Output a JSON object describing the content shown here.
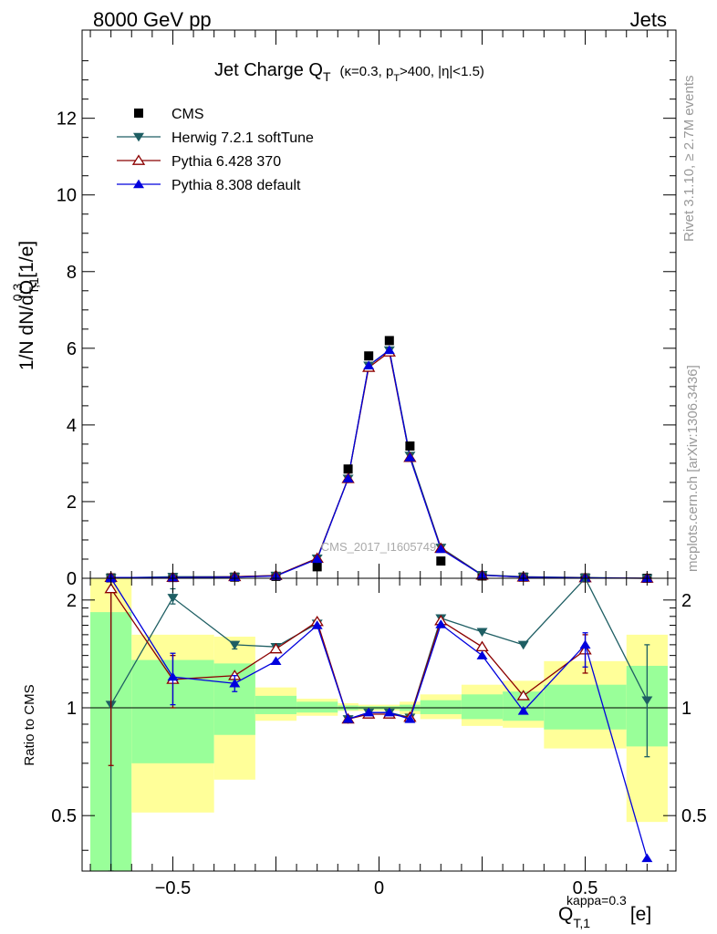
{
  "header": {
    "left": "8000 GeV pp",
    "right": "Jets"
  },
  "side_text": {
    "top": "Rivet 3.1.10, ≥ 2.7M events",
    "bottom": "mcplots.cern.ch [arXiv:1306.3436]"
  },
  "watermark": "CMS_2017_I1605749",
  "colors": {
    "cms": "#000000",
    "herwig": "#1e5e63",
    "pythia6": "#8b0000",
    "pythia8": "#0000dd",
    "band_inner": "#99ff99",
    "band_outer": "#ffff99"
  },
  "chart_data": [
    {
      "type": "scatter",
      "title": "Jet Charge Q",
      "title_sub": "T",
      "title_tail": "(κ=0.3, p",
      "title_tail_sub": "T",
      "title_tail_end": ">400, |η|<1.5)",
      "ylabel": "1/N dN/dQ",
      "ylabel_sub": "T,1",
      "ylabel_sup": "0.3",
      "ylabel_unit": "[1/e]",
      "xlim": [
        -0.72,
        0.72
      ],
      "ylim": [
        0,
        14.3
      ],
      "yticks": [
        0,
        2,
        4,
        6,
        8,
        10,
        12
      ],
      "legend_position": "top-left",
      "x": [
        -0.65,
        -0.5,
        -0.35,
        -0.25,
        -0.15,
        -0.075,
        -0.025,
        0.025,
        0.075,
        0.15,
        0.25,
        0.35,
        0.5,
        0.65
      ],
      "series": [
        {
          "name": "CMS",
          "marker": "square",
          "values": [
            0.01,
            0.02,
            0.03,
            0.05,
            0.3,
            2.85,
            5.8,
            6.2,
            3.45,
            0.45,
            0.06,
            0.03,
            0.01,
            0.0
          ]
        },
        {
          "name": "Herwig 7.2.1 softTune",
          "marker": "triangle-down",
          "values": [
            0.01,
            0.04,
            0.04,
            0.07,
            0.52,
            2.6,
            5.55,
            5.95,
            3.2,
            0.8,
            0.09,
            0.04,
            0.02,
            0.0
          ]
        },
        {
          "name": "Pythia 6.428 370",
          "marker": "triangle-up-open",
          "values": [
            0.02,
            0.02,
            0.04,
            0.07,
            0.52,
            2.6,
            5.5,
            5.9,
            3.15,
            0.78,
            0.08,
            0.03,
            0.01,
            0.0
          ]
        },
        {
          "name": "Pythia 8.308 default",
          "marker": "triangle-up",
          "values": [
            0.02,
            0.02,
            0.03,
            0.06,
            0.5,
            2.6,
            5.55,
            5.95,
            3.15,
            0.76,
            0.08,
            0.03,
            0.01,
            0.0
          ]
        }
      ]
    },
    {
      "type": "scatter",
      "ylabel": "Ratio to CMS",
      "xlabel": "Q",
      "xlabel_sub": "T,1",
      "xlabel_sup": "kappa=0.3",
      "xlabel_unit": "[e]",
      "xlim": [
        -0.72,
        0.72
      ],
      "ylim": [
        0.35,
        2.3
      ],
      "yticks": [
        0.5,
        1,
        2
      ],
      "xticks": [
        -0.5,
        0,
        0.5
      ],
      "reference_line": 1,
      "bins": [
        [
          -0.7,
          -0.6
        ],
        [
          -0.6,
          -0.4
        ],
        [
          -0.4,
          -0.3
        ],
        [
          -0.3,
          -0.2
        ],
        [
          -0.2,
          -0.1
        ],
        [
          -0.1,
          -0.05
        ],
        [
          -0.05,
          0.0
        ],
        [
          0.0,
          0.05
        ],
        [
          0.05,
          0.1
        ],
        [
          0.1,
          0.2
        ],
        [
          0.2,
          0.3
        ],
        [
          0.3,
          0.4
        ],
        [
          0.4,
          0.6
        ],
        [
          0.6,
          0.7
        ]
      ],
      "band_inner": [
        [
          0.3,
          1.85
        ],
        [
          0.7,
          1.36
        ],
        [
          0.84,
          1.33
        ],
        [
          0.96,
          1.08
        ],
        [
          0.97,
          1.04
        ],
        [
          0.985,
          1.015
        ],
        [
          0.99,
          1.01
        ],
        [
          0.99,
          1.01
        ],
        [
          0.98,
          1.02
        ],
        [
          0.96,
          1.05
        ],
        [
          0.93,
          1.09
        ],
        [
          0.92,
          1.11
        ],
        [
          0.87,
          1.16
        ],
        [
          0.78,
          1.31
        ]
      ],
      "band_outer": [
        [
          0.3,
          2.3
        ],
        [
          0.51,
          1.6
        ],
        [
          0.63,
          1.58
        ],
        [
          0.92,
          1.14
        ],
        [
          0.95,
          1.06
        ],
        [
          0.98,
          1.03
        ],
        [
          0.98,
          1.02
        ],
        [
          0.98,
          1.02
        ],
        [
          0.96,
          1.04
        ],
        [
          0.93,
          1.09
        ],
        [
          0.89,
          1.16
        ],
        [
          0.88,
          1.19
        ],
        [
          0.77,
          1.35
        ],
        [
          0.48,
          1.6
        ]
      ],
      "series": [
        {
          "name": "Herwig 7.2.1 softTune",
          "values": [
            1.02,
            2.03,
            1.5,
            1.48,
            1.72,
            0.93,
            0.97,
            0.97,
            0.94,
            1.78,
            1.63,
            1.5,
            2.3,
            1.05
          ],
          "errors": [
            [
              0.3,
              2.3
            ],
            [
              1.95,
              2.15
            ],
            [
              1.46,
              1.53
            ],
            null,
            null,
            null,
            null,
            null,
            null,
            null,
            null,
            null,
            null,
            [
              0.73,
              1.5
            ]
          ]
        },
        {
          "name": "Pythia 6.428 370",
          "values": [
            2.15,
            1.2,
            1.23,
            1.46,
            1.74,
            0.93,
            0.96,
            0.96,
            0.94,
            1.75,
            1.48,
            1.08,
            1.45,
            null
          ],
          "errors": [
            [
              0.69,
              2.25
            ],
            [
              1.0,
              1.4
            ],
            null,
            null,
            null,
            null,
            null,
            null,
            null,
            null,
            null,
            null,
            [
              1.25,
              1.6
            ],
            null
          ]
        },
        {
          "name": "Pythia 8.308 default",
          "values": [
            2.3,
            1.22,
            1.17,
            1.35,
            1.7,
            0.93,
            0.97,
            0.97,
            0.93,
            1.71,
            1.4,
            0.98,
            1.5,
            0.38
          ],
          "errors": [
            null,
            [
              1.02,
              1.42
            ],
            [
              1.11,
              1.23
            ],
            null,
            null,
            null,
            null,
            null,
            null,
            null,
            null,
            null,
            [
              1.3,
              1.62
            ],
            null
          ]
        }
      ]
    }
  ]
}
